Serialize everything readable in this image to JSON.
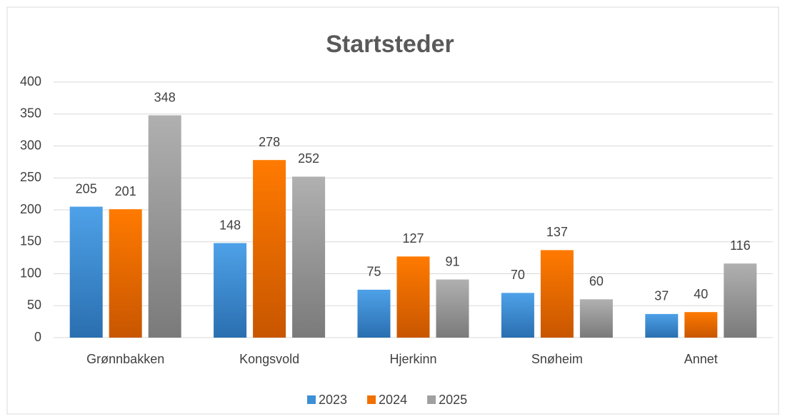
{
  "chart_data": {
    "type": "bar",
    "title": "Startsteder",
    "categories": [
      "Grønnbakken",
      "Kongsvold",
      "Hjerkinn",
      "Snøheim",
      "Annet"
    ],
    "series": [
      {
        "name": "2023",
        "color": "#3d8fd6",
        "values": [
          205,
          148,
          75,
          70,
          37
        ]
      },
      {
        "name": "2024",
        "color": "#f07000",
        "values": [
          201,
          278,
          127,
          137,
          40
        ]
      },
      {
        "name": "2025",
        "color": "#a0a0a0",
        "values": [
          348,
          252,
          91,
          60,
          116
        ]
      }
    ],
    "ylim": [
      0,
      400
    ],
    "yticks": [
      0,
      50,
      100,
      150,
      200,
      250,
      300,
      350,
      400
    ],
    "grid": true,
    "legend": "bottom"
  }
}
